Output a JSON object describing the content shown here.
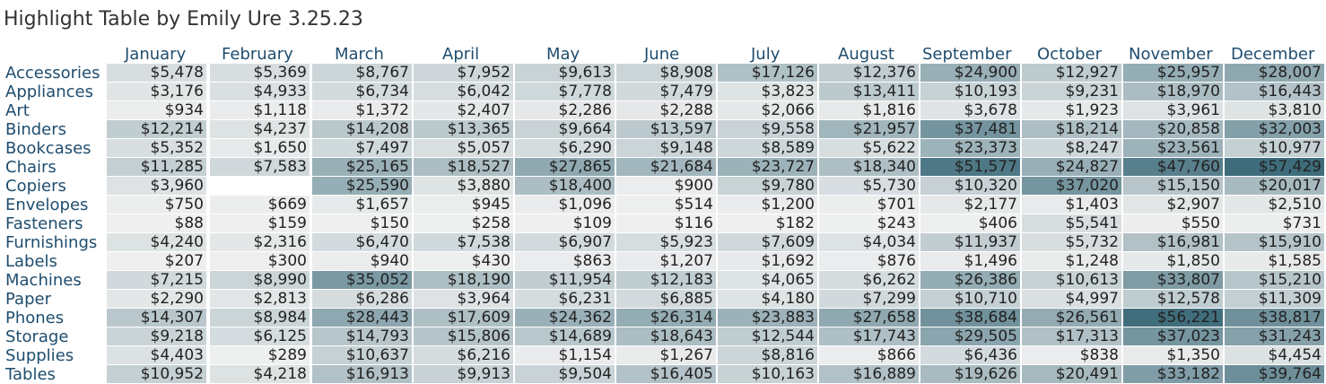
{
  "title": "Highlight Table by Emily Ure 3.25.23",
  "chart_data": {
    "type": "table",
    "title": "Highlight Table by Emily Ure 3.25.23",
    "columns": [
      "January",
      "February",
      "March",
      "April",
      "May",
      "June",
      "July",
      "August",
      "September",
      "October",
      "November",
      "December"
    ],
    "rows": [
      "Accessories",
      "Appliances",
      "Art",
      "Binders",
      "Bookcases",
      "Chairs",
      "Copiers",
      "Envelopes",
      "Fasteners",
      "Furnishings",
      "Labels",
      "Machines",
      "Paper",
      "Phones",
      "Storage",
      "Supplies",
      "Tables"
    ],
    "values": [
      [
        "$5,478",
        "$5,369",
        "$8,767",
        "$7,952",
        "$9,613",
        "$8,908",
        "$17,126",
        "$12,376",
        "$24,900",
        "$12,927",
        "$25,957",
        "$28,007"
      ],
      [
        "$3,176",
        "$4,933",
        "$6,734",
        "$6,042",
        "$7,778",
        "$7,479",
        "$3,823",
        "$13,411",
        "$10,193",
        "$9,231",
        "$18,970",
        "$16,443"
      ],
      [
        "$934",
        "$1,118",
        "$1,372",
        "$2,407",
        "$2,286",
        "$2,288",
        "$2,066",
        "$1,816",
        "$3,678",
        "$1,923",
        "$3,961",
        "$3,810"
      ],
      [
        "$12,214",
        "$4,237",
        "$14,208",
        "$13,365",
        "$9,664",
        "$13,597",
        "$9,558",
        "$21,957",
        "$37,481",
        "$18,214",
        "$20,858",
        "$32,003"
      ],
      [
        "$5,352",
        "$1,650",
        "$7,497",
        "$5,057",
        "$6,290",
        "$9,148",
        "$8,589",
        "$5,622",
        "$23,373",
        "$8,247",
        "$23,561",
        "$10,977"
      ],
      [
        "$11,285",
        "$7,583",
        "$25,165",
        "$18,527",
        "$27,865",
        "$21,684",
        "$23,727",
        "$18,340",
        "$51,577",
        "$24,827",
        "$47,760",
        "$57,429"
      ],
      [
        "$3,960",
        "",
        "$25,590",
        "$3,880",
        "$18,400",
        "$900",
        "$9,780",
        "$5,730",
        "$10,320",
        "$37,020",
        "$15,150",
        "$20,017"
      ],
      [
        "$750",
        "$669",
        "$1,657",
        "$945",
        "$1,096",
        "$514",
        "$1,200",
        "$701",
        "$2,177",
        "$1,403",
        "$2,907",
        "$2,510"
      ],
      [
        "$88",
        "$159",
        "$150",
        "$258",
        "$109",
        "$116",
        "$182",
        "$243",
        "$406",
        "$5,541",
        "$550",
        "$731"
      ],
      [
        "$4,240",
        "$2,316",
        "$6,470",
        "$7,538",
        "$6,907",
        "$5,923",
        "$7,609",
        "$4,034",
        "$11,937",
        "$5,732",
        "$16,981",
        "$15,910"
      ],
      [
        "$207",
        "$300",
        "$940",
        "$430",
        "$863",
        "$1,207",
        "$1,692",
        "$876",
        "$1,496",
        "$1,248",
        "$1,850",
        "$1,585"
      ],
      [
        "$7,215",
        "$8,990",
        "$35,052",
        "$18,190",
        "$11,954",
        "$12,183",
        "$4,065",
        "$6,262",
        "$26,386",
        "$10,613",
        "$33,807",
        "$15,210"
      ],
      [
        "$2,290",
        "$2,813",
        "$6,286",
        "$3,964",
        "$6,231",
        "$6,885",
        "$4,180",
        "$7,299",
        "$10,710",
        "$4,997",
        "$12,578",
        "$11,309"
      ],
      [
        "$14,307",
        "$8,984",
        "$28,443",
        "$17,609",
        "$24,362",
        "$26,314",
        "$23,883",
        "$27,658",
        "$38,684",
        "$26,561",
        "$56,221",
        "$38,817"
      ],
      [
        "$9,218",
        "$6,125",
        "$14,793",
        "$15,806",
        "$14,689",
        "$18,643",
        "$12,544",
        "$17,743",
        "$29,505",
        "$17,313",
        "$37,023",
        "$31,243"
      ],
      [
        "$4,403",
        "$289",
        "$10,637",
        "$6,216",
        "$1,154",
        "$1,267",
        "$8,816",
        "$866",
        "$6,436",
        "$838",
        "$1,350",
        "$4,454"
      ],
      [
        "$10,952",
        "$4,218",
        "$16,913",
        "$9,913",
        "$9,504",
        "$16,405",
        "$10,163",
        "$16,889",
        "$19,626",
        "$20,491",
        "$33,182",
        "$39,764"
      ]
    ],
    "color_scale": {
      "low": "#f0f0f0",
      "high": "#3e6c7b"
    }
  }
}
